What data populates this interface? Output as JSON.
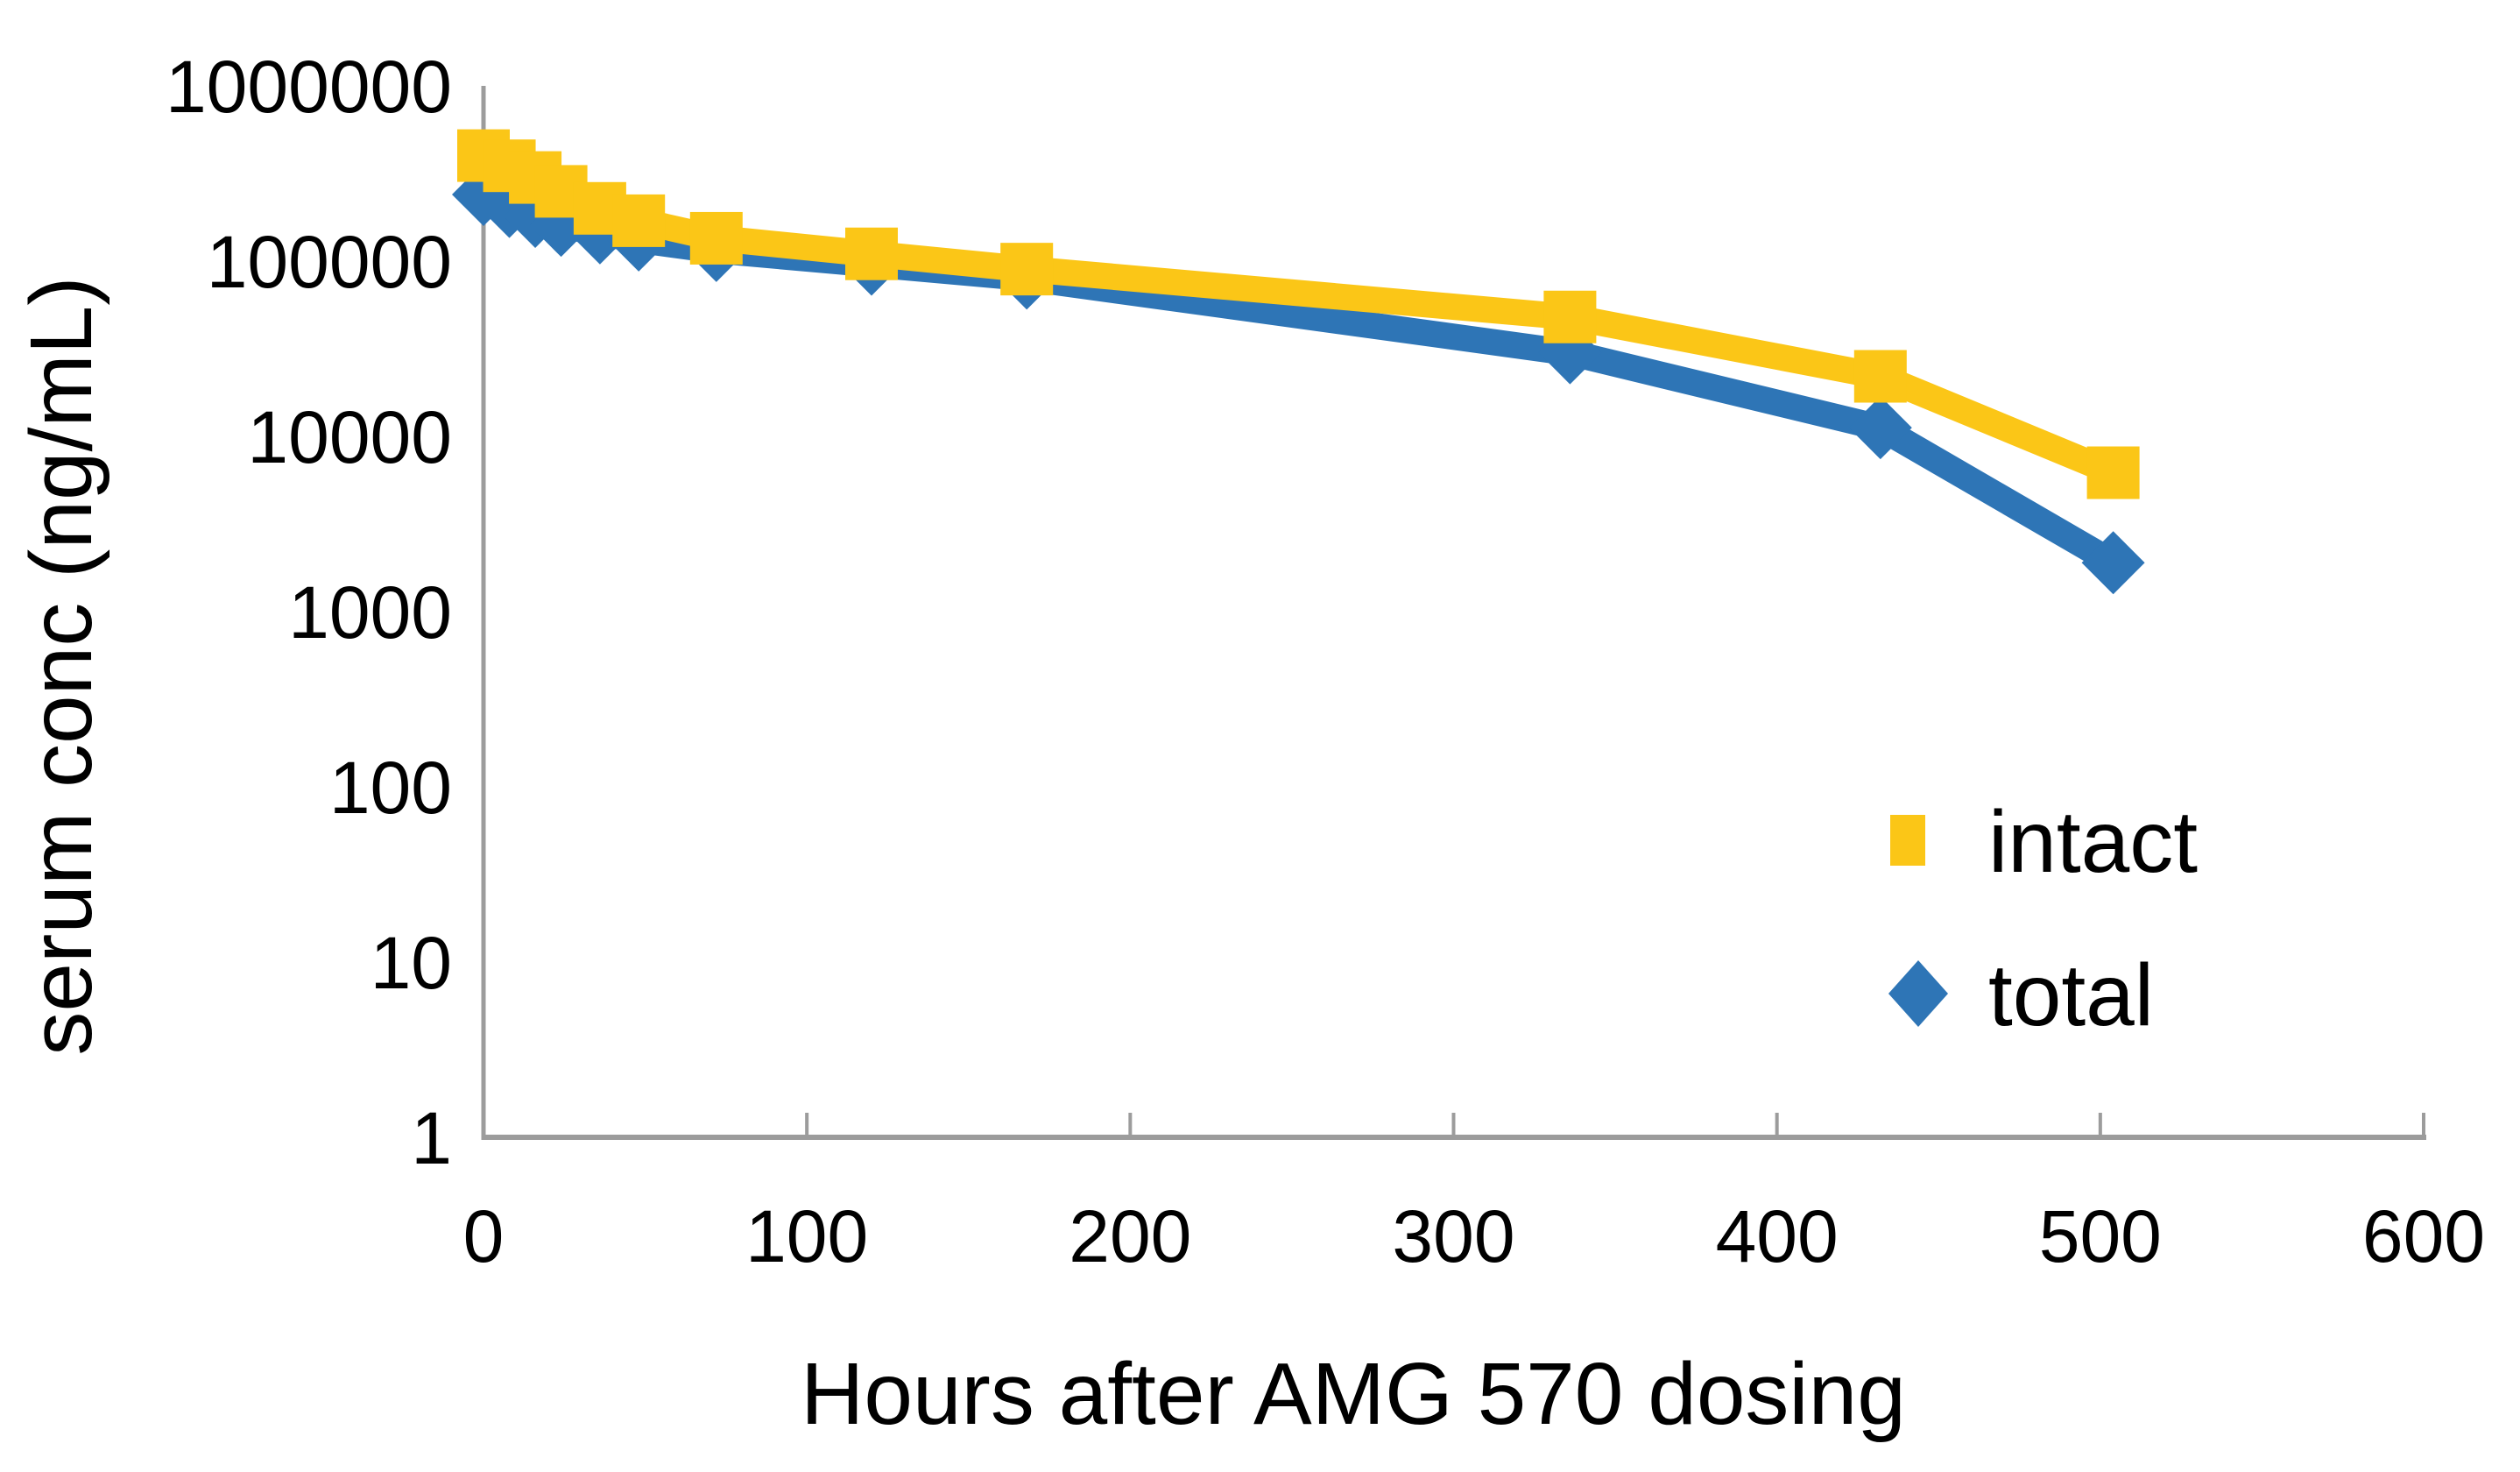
{
  "chart_data": {
    "type": "line",
    "title": "",
    "xlabel": "Hours after AMG 570 dosing",
    "ylabel": "serum conc (ng/mL)",
    "x_scale": "linear",
    "y_scale": "log",
    "xlim": [
      0,
      600
    ],
    "ylim": [
      1,
      1000000
    ],
    "grid": false,
    "x_ticks": [
      0,
      100,
      200,
      300,
      400,
      500,
      600
    ],
    "y_ticks": [
      1,
      10,
      100,
      1000,
      10000,
      100000,
      1000000
    ],
    "x": [
      0,
      8,
      16,
      24,
      36,
      48,
      72,
      120,
      168,
      336,
      432,
      504
    ],
    "series": [
      {
        "name": "intact",
        "marker": "square",
        "color": "#FBC617",
        "values": [
          400000,
          350000,
          300000,
          250000,
          200000,
          170000,
          135000,
          110000,
          90000,
          48000,
          22000,
          6200
        ]
      },
      {
        "name": "total",
        "marker": "diamond",
        "color": "#2E75B6",
        "values": [
          240000,
          205000,
          180000,
          160000,
          145000,
          132000,
          115000,
          96000,
          80000,
          30000,
          11200,
          1900
        ]
      }
    ],
    "legend_position": "right-middle",
    "axis_color": "#9C9C9C",
    "text_color": "#000000",
    "background_color": "#FFFFFF"
  },
  "legend": {
    "items": [
      {
        "label": "intact",
        "marker": "square-icon"
      },
      {
        "label": "total",
        "marker": "diamond-icon"
      }
    ]
  }
}
